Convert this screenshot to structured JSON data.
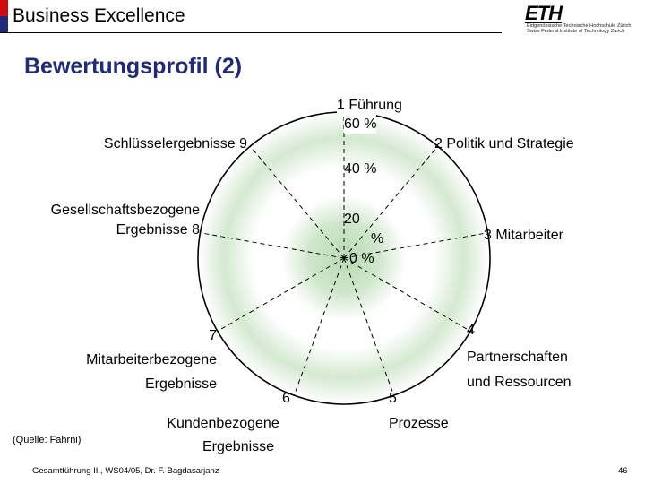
{
  "header": {
    "section": "Business Excellence"
  },
  "logo": {
    "mark": "ETH",
    "line1": "Eidgenössische Technische Hochschule Zürich",
    "line2": "Swiss Federal Institute of Technology Zurich"
  },
  "title": "Bewertungsprofil (2)",
  "diagram": {
    "scale_labels": {
      "p60": "60 %",
      "p40": "40 %",
      "p20_num": "20",
      "p20_unit": "%",
      "p0": "0 %"
    },
    "axes": [
      {
        "num": "1",
        "name": "Führung"
      },
      {
        "num": "2",
        "name": "Politik und Strategie"
      },
      {
        "num": "3",
        "name": "Mitarbeiter"
      },
      {
        "num": "4",
        "name": "Partnerschaften und Ressourcen",
        "line1": "Partnerschaften",
        "line2": "und Ressourcen"
      },
      {
        "num": "5",
        "name": "Prozesse"
      },
      {
        "num": "6",
        "name": "Kundenbezogene Ergebnisse",
        "line1": "Kundenbezogene",
        "line2": "Ergebnisse"
      },
      {
        "num": "7",
        "name": "Mitarbeiterbezogene Ergebnisse",
        "line1": "Mitarbeiterbezogene",
        "line2": "Ergebnisse"
      },
      {
        "num": "8",
        "name": "Gesellschaftsbezogene Ergebnisse",
        "line1": "Gesellschaftsbezogene",
        "line2": "Ergebnisse"
      },
      {
        "num": "9",
        "name": "Schlüsselergebnisse"
      }
    ],
    "labels": {
      "a1": "1 Führung",
      "a2": "2 Politik und Strategie",
      "a3": "3 Mitarbeiter",
      "a9": "Schlüsselergebnisse 9",
      "a8_line2": "Ergebnisse 8"
    }
  },
  "footer": {
    "source": "(Quelle: Fahrni)",
    "course": "Gesamtführung II., WS04/05, Dr. F. Bagdasarjanz",
    "page": "46"
  },
  "colors": {
    "title": "#1f2a7a",
    "ring_green": "#d3e8cf",
    "brand_red": "#d10a10"
  }
}
